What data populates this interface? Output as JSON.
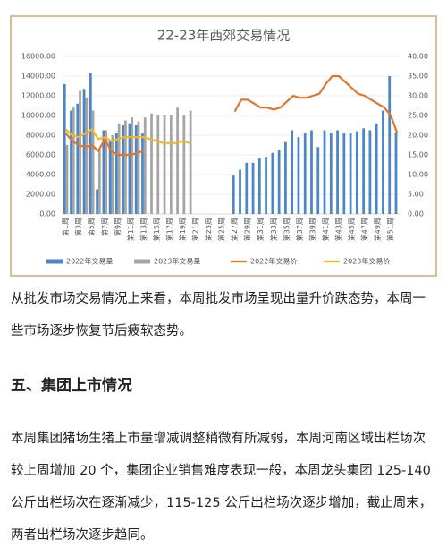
{
  "chart_data": {
    "type": "bar-line",
    "title": "22-23年西郊交易情况",
    "categories": [
      "第1周",
      null,
      "第3周",
      null,
      "第5周",
      null,
      "第7周",
      null,
      "第9周",
      null,
      "第11周",
      null,
      "第13周",
      null,
      "第15周",
      null,
      "第17周",
      null,
      "第19周",
      null,
      "第21周",
      null,
      "第23周",
      null,
      "第25周",
      null,
      "第27周",
      null,
      "第29周",
      null,
      "第31周",
      null,
      "第33周",
      null,
      "第35周",
      null,
      "第37周",
      null,
      "第39周",
      null,
      "第41周",
      null,
      "第43周",
      null,
      "第45周",
      null,
      "第47周",
      null,
      "第49周",
      null,
      "第51周",
      null
    ],
    "series": [
      {
        "name": "2022年交易量",
        "color": "#4a86c8",
        "kind": "bar",
        "values": [
          13200,
          10500,
          11200,
          12700,
          14300,
          2500,
          8500,
          7500,
          8200,
          9000,
          9200,
          9000,
          8200,
          null,
          null,
          null,
          null,
          null,
          null,
          null,
          null,
          null,
          null,
          null,
          null,
          null,
          3900,
          4500,
          5200,
          5200,
          5700,
          5800,
          6200,
          6500,
          7300,
          8500,
          7800,
          8200,
          8500,
          6800,
          8500,
          8200,
          8500,
          8200,
          8200,
          8400,
          8700,
          8500,
          9200,
          10500,
          14000,
          8300
        ]
      },
      {
        "name": "2023年交易量",
        "color": "#a5a5a5",
        "kind": "bar",
        "values": [
          7000,
          10800,
          12500,
          11800,
          10500,
          6500,
          8500,
          8000,
          9200,
          9500,
          9800,
          9400,
          9800,
          10200,
          10000,
          10000,
          10000,
          10800,
          10000,
          10500,
          null,
          null,
          null,
          null,
          null,
          null,
          null,
          null,
          null,
          null,
          null,
          null,
          null,
          null,
          null,
          null,
          null,
          null,
          null,
          null,
          null,
          null,
          null,
          null,
          null,
          null,
          null,
          null,
          null,
          null,
          null,
          null
        ]
      },
      {
        "name": "2022年交易价",
        "color": "#e0762d",
        "kind": "line",
        "axis": "y2",
        "values": [
          20.5,
          18.5,
          17.5,
          17,
          17.5,
          16,
          19,
          16,
          15,
          15,
          15,
          15.5,
          16,
          null,
          null,
          null,
          null,
          null,
          null,
          null,
          null,
          null,
          null,
          null,
          null,
          null,
          26,
          29,
          29,
          28,
          27,
          27,
          26.5,
          27,
          28.5,
          30,
          29.5,
          29.5,
          30,
          30.5,
          33,
          35,
          35,
          33.5,
          32,
          30.5,
          30,
          29,
          28,
          27,
          25,
          20.5
        ]
      },
      {
        "name": "2023年交易价",
        "color": "#f5b723",
        "kind": "line",
        "axis": "y2",
        "values": [
          21.5,
          20,
          19.5,
          20.5,
          21.5,
          19,
          19.5,
          18.5,
          19,
          19.5,
          19.5,
          19.5,
          19.5,
          19,
          18.5,
          18,
          18,
          18,
          18.5,
          18,
          null,
          null,
          null,
          null,
          null,
          null,
          null,
          null,
          null,
          null,
          null,
          null,
          null,
          null,
          null,
          null,
          null,
          null,
          null,
          null,
          null,
          null,
          null,
          null,
          null,
          null,
          null,
          null,
          null,
          null,
          null,
          null
        ]
      }
    ],
    "ylim": [
      0,
      16000
    ],
    "yticks": [
      {
        "value": 0,
        "label": "0.00"
      },
      {
        "value": 2000,
        "label": "2000.00"
      },
      {
        "value": 4000,
        "label": "4000.00"
      },
      {
        "value": 6000,
        "label": "6000.00"
      },
      {
        "value": 8000,
        "label": "8000.00"
      },
      {
        "value": 10000,
        "label": "10000.00"
      },
      {
        "value": 12000,
        "label": "12000.00"
      },
      {
        "value": 14000,
        "label": "14000.00"
      },
      {
        "value": 16000,
        "label": "16000.00"
      }
    ],
    "y2lim": [
      0,
      40
    ],
    "y2ticks": [
      {
        "value": 0,
        "label": "0.00"
      },
      {
        "value": 5,
        "label": "5.00"
      },
      {
        "value": 10,
        "label": "10.00"
      },
      {
        "value": 15,
        "label": "15.00"
      },
      {
        "value": 20,
        "label": "20.00"
      },
      {
        "value": 25,
        "label": "25.00"
      },
      {
        "value": 30,
        "label": "30.00"
      },
      {
        "value": 35,
        "label": "35.00"
      },
      {
        "value": 40,
        "label": "40.00"
      }
    ],
    "grid": true,
    "legend": "bottom"
  },
  "paragraph1": "从批发市场交易情况上来看，本周批发市场呈现出量升价跌态势，本周一些市场逐步恢复节后疲软态势。",
  "heading": "五、集团上市情况",
  "paragraph2": "本周集团猪场生猪上市量增减调整稍微有所减弱，本周河南区域出栏场次较上周增加 20 个，集团企业销售难度表现一般，本周龙头集团 125-140 公斤出栏场次在逐渐减少，115-125 公斤出栏场次逐步增加，截止周末，两者出栏场次逐步趋同。"
}
